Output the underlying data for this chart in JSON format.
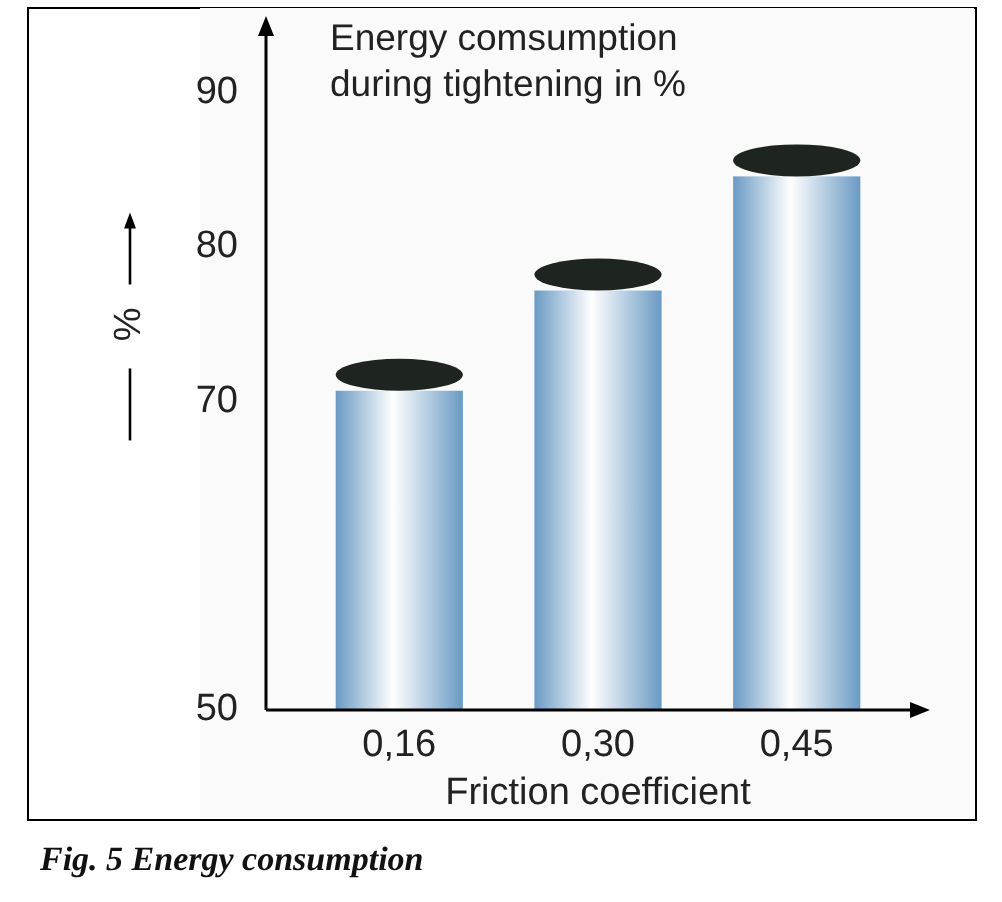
{
  "chart_data": {
    "type": "bar",
    "title": "Energy comsumption\nduring tightening in %",
    "xlabel": "Friction coefficient",
    "ylabel": "%",
    "categories": [
      "0,16",
      "0,30",
      "0,45"
    ],
    "values": [
      70.7,
      77.2,
      84.6
    ],
    "color": "#6a9ac4",
    "ylim": [
      50,
      95
    ],
    "yticks": [
      50,
      70,
      80,
      90
    ],
    "grid": false,
    "annotations": [
      "Fig. 5 Energy consumption"
    ]
  }
}
